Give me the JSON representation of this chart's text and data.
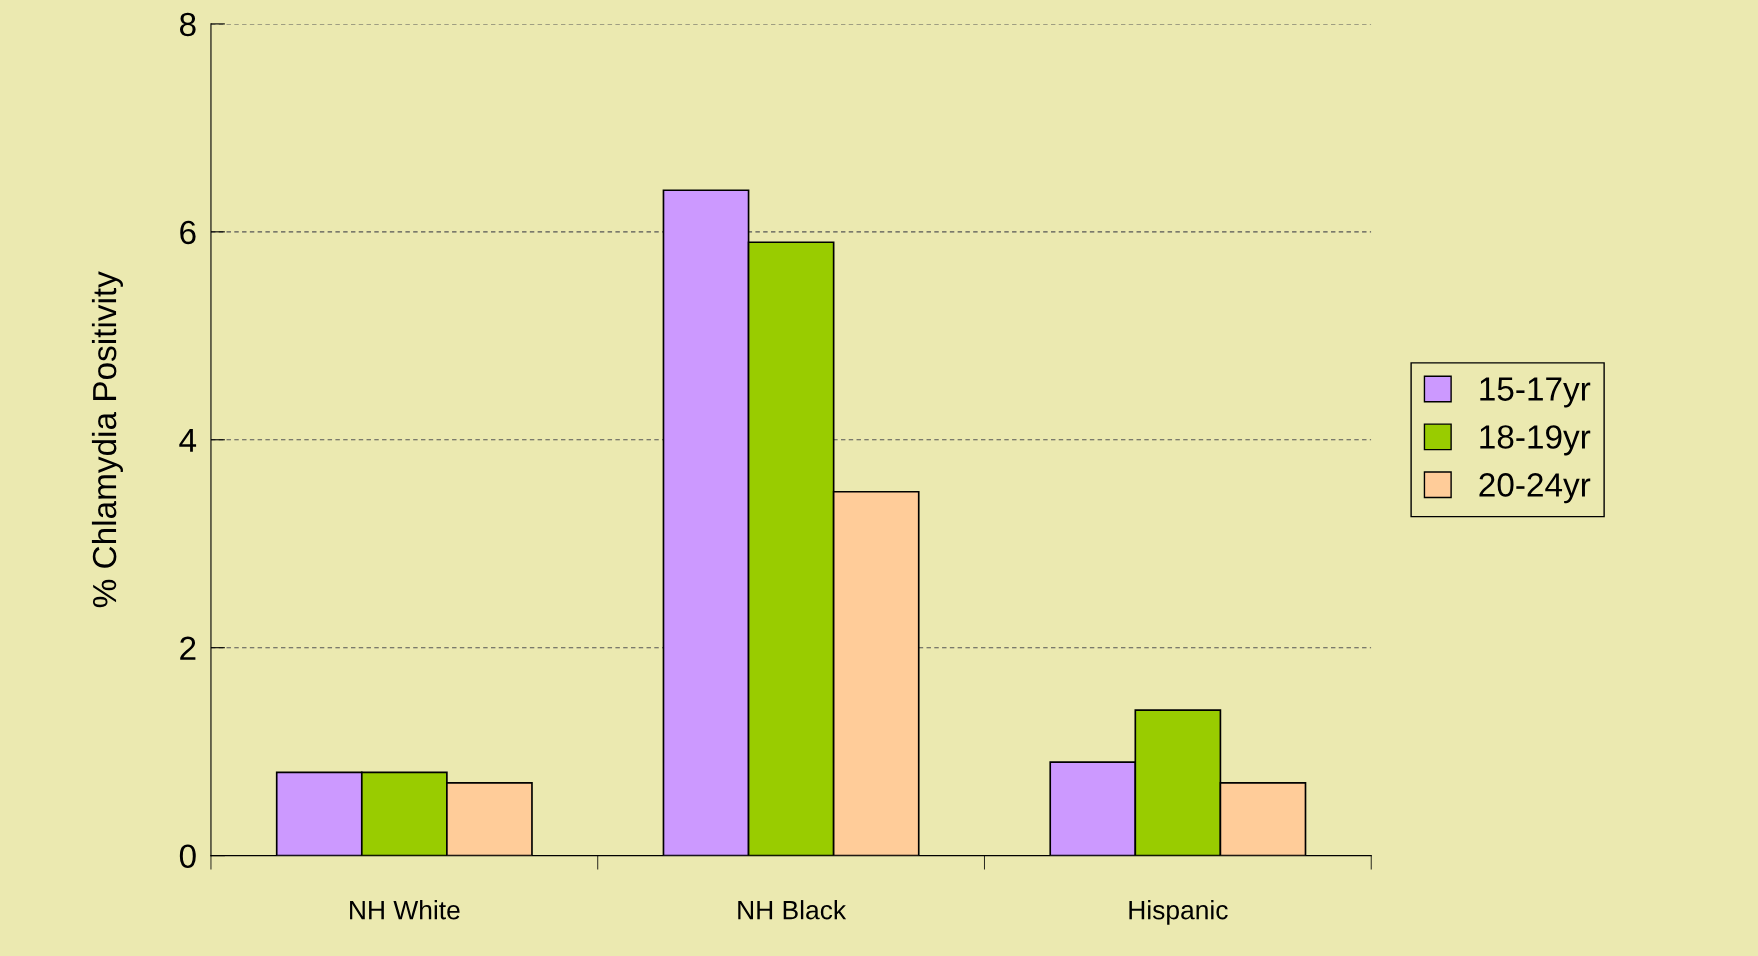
{
  "chart_data": {
    "type": "bar",
    "ylabel": "% Chlamydia Positivity",
    "categories": [
      "NH White",
      "NH Black",
      "Hispanic"
    ],
    "series": [
      {
        "name": "15-17yr",
        "color": "#cc99ff",
        "values": [
          0.8,
          6.4,
          0.9
        ]
      },
      {
        "name": "18-19yr",
        "color": "#99cc00",
        "values": [
          0.8,
          5.9,
          1.4
        ]
      },
      {
        "name": "20-24yr",
        "color": "#ffcc99",
        "values": [
          0.7,
          3.5,
          0.7
        ]
      }
    ],
    "ylim": [
      0,
      8
    ],
    "yticks": [
      0,
      2,
      4,
      6,
      8
    ],
    "grid": "y",
    "legend": "right"
  }
}
